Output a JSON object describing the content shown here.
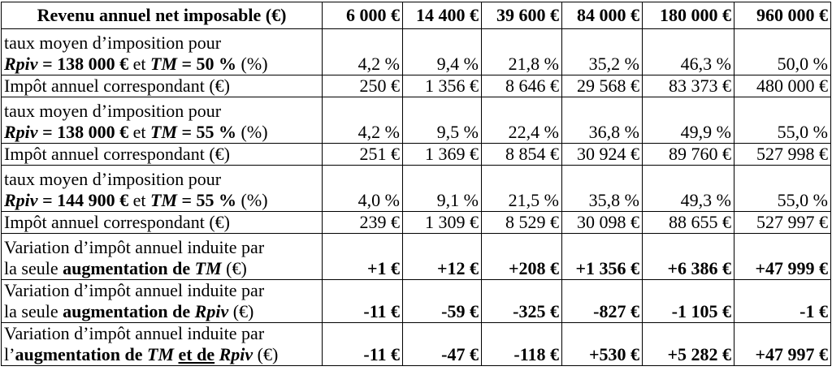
{
  "header": {
    "label": "Revenu annuel net imposable (€)",
    "cols": [
      "6 000 €",
      "14 400 €",
      "39 600 €",
      "84 000 €",
      "180 000 €",
      "960 000 €"
    ]
  },
  "rows": [
    {
      "id": "taux-138-50",
      "label_line1": "taux moyen d’imposition pour",
      "label_line2": {
        "pre": "Rpiv",
        "mid1": " = 138 000 €",
        "et": " et ",
        "tm": "TM",
        "mid2": " = 50 %",
        "unit": " (%)"
      },
      "values": [
        "4,2 %",
        "9,4 %",
        "21,8 %",
        "35,2 %",
        "46,3 %",
        "50,0 %"
      ]
    },
    {
      "id": "impot-1",
      "label": "Impôt annuel correspondant (€)",
      "values": [
        "250 €",
        "1 356 €",
        "8 646 €",
        "29 568 €",
        "83 373 €",
        "480 000 €"
      ]
    },
    {
      "id": "taux-138-55",
      "label_line1": "taux moyen d’imposition pour",
      "label_line2": {
        "pre": "Rpiv",
        "mid1": " = 138 000 €",
        "et": " et ",
        "tm": "TM",
        "mid2": " = 55 %",
        "unit": " (%)"
      },
      "values": [
        "4,2 %",
        "9,5 %",
        "22,4 %",
        "36,8 %",
        "49,9 %",
        "55,0 %"
      ]
    },
    {
      "id": "impot-2",
      "label": "Impôt annuel correspondant (€)",
      "values": [
        "251 €",
        "1 369 €",
        "8 854 €",
        "30 924 €",
        "89 760 €",
        "527 998 €"
      ]
    },
    {
      "id": "taux-144-55",
      "label_line1": "taux moyen d’imposition pour",
      "label_line2": {
        "pre": "Rpiv",
        "mid1": " = 144 900 €",
        "et": " et ",
        "tm": "TM",
        "mid2": " = 55 %",
        "unit": " (%)"
      },
      "values": [
        "4,0 %",
        "9,1 %",
        "21,5 %",
        "35,8 %",
        "49,3 %",
        "55,0 %"
      ]
    },
    {
      "id": "impot-3",
      "label": "Impôt annuel correspondant (€)",
      "values": [
        "239 €",
        "1 309 €",
        "8 529 €",
        "30 098 €",
        "88 655 €",
        "527 997 €"
      ]
    },
    {
      "id": "variation-tm",
      "label_line1": "Variation d’impôt annuel induite par",
      "label_line2": {
        "plain": "la seule ",
        "bold": "augmentation de ",
        "it": "TM",
        "unit": " (€)"
      },
      "values": [
        "+1 €",
        "+12 €",
        "+208 €",
        "+1 356 €",
        "+6 386 €",
        "+47 999 €"
      ]
    },
    {
      "id": "variation-rpiv",
      "label_line1": "Variation d’impôt annuel induite par",
      "label_line2": {
        "plain": "la seule ",
        "bold": "augmentation de ",
        "it": "Rpiv",
        "unit": " (€)"
      },
      "values": [
        "-11 €",
        "-59 €",
        "-325 €",
        "-827 €",
        "-1 105 €",
        "-1 €"
      ]
    },
    {
      "id": "variation-both",
      "label_line1": "Variation d’impôt annuel induite par",
      "label_line2": {
        "plain": "l’",
        "bold": "augmentation de ",
        "it1": "TM",
        "sp1": " ",
        "und": "et de",
        "sp2": " ",
        "it2": "Rpiv",
        "unit": " (€)"
      },
      "values": [
        "-11 €",
        "-47 €",
        "-118 €",
        "+530 €",
        "+5 282 €",
        "+47 997 €"
      ]
    }
  ]
}
